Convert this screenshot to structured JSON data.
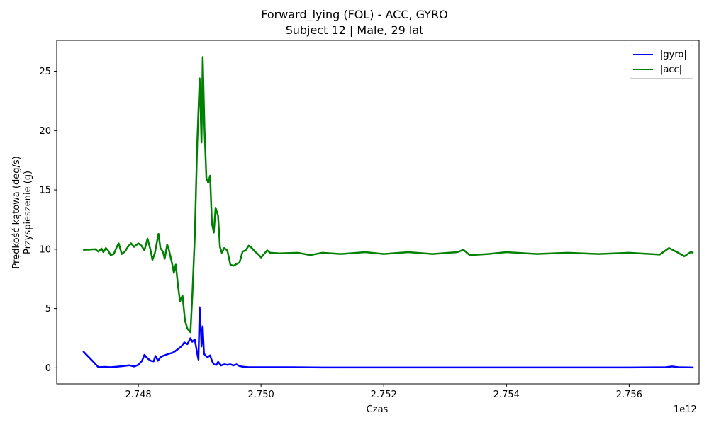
{
  "title_line1": "Forward_lying (FOL) - ACC, GYRO",
  "title_line2": "Subject 12 | Male, 29 lat",
  "chart_data": {
    "type": "line",
    "title": "Forward_lying (FOL) - ACC, GYRO\nSubject 12 | Male, 29 lat",
    "xlabel": "Czas",
    "ylabel_line1": "Prędkość kątowa (deg/s)",
    "ylabel_line2": "Przyspieszenie (g)",
    "x_offset_label": "1e12",
    "x_ticks": [
      2.748,
      2.75,
      2.752,
      2.754,
      2.756
    ],
    "x_tick_labels": [
      "2.748",
      "2.750",
      "2.752",
      "2.754",
      "2.756"
    ],
    "y_ticks": [
      0,
      5,
      10,
      15,
      20,
      25
    ],
    "y_tick_labels": [
      "0",
      "5",
      "10",
      "15",
      "20",
      "25"
    ],
    "xlim": [
      2.74667,
      2.75714
    ],
    "ylim": [
      -1.35,
      27.6
    ],
    "grid": false,
    "legend_position": "top-right",
    "series": [
      {
        "name": "|gyro|",
        "color": "#0000ff",
        "points": [
          [
            2.7471,
            1.4
          ],
          [
            2.74725,
            0.6
          ],
          [
            2.74735,
            0.05
          ],
          [
            2.74745,
            0.08
          ],
          [
            2.74755,
            0.05
          ],
          [
            2.74765,
            0.1
          ],
          [
            2.74775,
            0.15
          ],
          [
            2.74785,
            0.22
          ],
          [
            2.74793,
            0.12
          ],
          [
            2.748,
            0.25
          ],
          [
            2.74806,
            0.6
          ],
          [
            2.7481,
            1.1
          ],
          [
            2.74815,
            0.8
          ],
          [
            2.7482,
            0.6
          ],
          [
            2.74825,
            0.55
          ],
          [
            2.74828,
            1.0
          ],
          [
            2.74832,
            0.6
          ],
          [
            2.74836,
            0.9
          ],
          [
            2.7484,
            1.0
          ],
          [
            2.74845,
            1.1
          ],
          [
            2.7485,
            1.2
          ],
          [
            2.74855,
            1.25
          ],
          [
            2.7486,
            1.4
          ],
          [
            2.74865,
            1.6
          ],
          [
            2.7487,
            1.8
          ],
          [
            2.74875,
            2.15
          ],
          [
            2.7488,
            2.0
          ],
          [
            2.74885,
            2.5
          ],
          [
            2.74888,
            2.2
          ],
          [
            2.74892,
            2.4
          ],
          [
            2.74896,
            1.2
          ],
          [
            2.74898,
            0.7
          ],
          [
            2.749,
            5.1
          ],
          [
            2.74902,
            3.0
          ],
          [
            2.74903,
            1.8
          ],
          [
            2.74905,
            3.5
          ],
          [
            2.74907,
            1.2
          ],
          [
            2.7491,
            1.0
          ],
          [
            2.74913,
            0.9
          ],
          [
            2.74917,
            1.05
          ],
          [
            2.7492,
            0.6
          ],
          [
            2.74923,
            0.3
          ],
          [
            2.74927,
            0.25
          ],
          [
            2.7493,
            0.5
          ],
          [
            2.74935,
            0.2
          ],
          [
            2.7494,
            0.3
          ],
          [
            2.74945,
            0.25
          ],
          [
            2.7495,
            0.3
          ],
          [
            2.74955,
            0.2
          ],
          [
            2.7496,
            0.3
          ],
          [
            2.74965,
            0.15
          ],
          [
            2.7497,
            0.1
          ],
          [
            2.7498,
            0.05
          ],
          [
            2.75,
            0.05
          ],
          [
            2.7505,
            0.05
          ],
          [
            2.751,
            0.03
          ],
          [
            2.752,
            0.03
          ],
          [
            2.753,
            0.03
          ],
          [
            2.754,
            0.03
          ],
          [
            2.755,
            0.03
          ],
          [
            2.756,
            0.03
          ],
          [
            2.7566,
            0.05
          ],
          [
            2.7567,
            0.12
          ],
          [
            2.7568,
            0.05
          ],
          [
            2.75705,
            0.03
          ]
        ]
      },
      {
        "name": "|acc|",
        "color": "#008000",
        "points": [
          [
            2.7471,
            9.95
          ],
          [
            2.7473,
            10.0
          ],
          [
            2.74735,
            9.8
          ],
          [
            2.7474,
            10.05
          ],
          [
            2.74743,
            9.75
          ],
          [
            2.74747,
            10.1
          ],
          [
            2.7475,
            9.95
          ],
          [
            2.74755,
            9.5
          ],
          [
            2.7476,
            9.6
          ],
          [
            2.74765,
            10.2
          ],
          [
            2.74768,
            10.5
          ],
          [
            2.74773,
            9.6
          ],
          [
            2.74778,
            9.8
          ],
          [
            2.74783,
            10.2
          ],
          [
            2.74788,
            10.5
          ],
          [
            2.74793,
            10.2
          ],
          [
            2.748,
            10.5
          ],
          [
            2.74805,
            10.3
          ],
          [
            2.7481,
            9.9
          ],
          [
            2.74815,
            10.9
          ],
          [
            2.7482,
            9.9
          ],
          [
            2.74823,
            9.1
          ],
          [
            2.74827,
            9.7
          ],
          [
            2.7483,
            10.5
          ],
          [
            2.74833,
            11.3
          ],
          [
            2.74836,
            10.1
          ],
          [
            2.7484,
            9.8
          ],
          [
            2.74843,
            9.2
          ],
          [
            2.74847,
            10.4
          ],
          [
            2.7485,
            9.9
          ],
          [
            2.74855,
            8.8
          ],
          [
            2.74858,
            8.0
          ],
          [
            2.74861,
            8.7
          ],
          [
            2.74865,
            6.8
          ],
          [
            2.74868,
            5.6
          ],
          [
            2.74872,
            6.1
          ],
          [
            2.74876,
            4.0
          ],
          [
            2.7488,
            3.3
          ],
          [
            2.74885,
            3.0
          ],
          [
            2.74888,
            6.0
          ],
          [
            2.74892,
            11.0
          ],
          [
            2.74896,
            19.0
          ],
          [
            2.749,
            24.4
          ],
          [
            2.74903,
            19.0
          ],
          [
            2.74905,
            26.2
          ],
          [
            2.74908,
            20.0
          ],
          [
            2.74911,
            16.0
          ],
          [
            2.74914,
            15.6
          ],
          [
            2.74917,
            16.2
          ],
          [
            2.7492,
            12.2
          ],
          [
            2.74923,
            11.4
          ],
          [
            2.74926,
            13.5
          ],
          [
            2.7493,
            12.8
          ],
          [
            2.74933,
            10.2
          ],
          [
            2.74936,
            9.7
          ],
          [
            2.7494,
            10.1
          ],
          [
            2.74945,
            9.9
          ],
          [
            2.7495,
            8.7
          ],
          [
            2.74955,
            8.6
          ],
          [
            2.7496,
            8.75
          ],
          [
            2.74965,
            8.9
          ],
          [
            2.7497,
            9.8
          ],
          [
            2.74975,
            9.9
          ],
          [
            2.7498,
            10.3
          ],
          [
            2.74985,
            10.1
          ],
          [
            2.7499,
            9.8
          ],
          [
            2.74995,
            9.6
          ],
          [
            2.75,
            9.3
          ],
          [
            2.75005,
            9.6
          ],
          [
            2.7501,
            9.9
          ],
          [
            2.75015,
            9.7
          ],
          [
            2.7503,
            9.65
          ],
          [
            2.7506,
            9.7
          ],
          [
            2.7508,
            9.5
          ],
          [
            2.751,
            9.7
          ],
          [
            2.7513,
            9.6
          ],
          [
            2.7517,
            9.75
          ],
          [
            2.752,
            9.6
          ],
          [
            2.7524,
            9.75
          ],
          [
            2.7528,
            9.6
          ],
          [
            2.7532,
            9.75
          ],
          [
            2.7533,
            9.95
          ],
          [
            2.7534,
            9.5
          ],
          [
            2.7537,
            9.6
          ],
          [
            2.754,
            9.75
          ],
          [
            2.7545,
            9.6
          ],
          [
            2.755,
            9.7
          ],
          [
            2.7555,
            9.6
          ],
          [
            2.756,
            9.7
          ],
          [
            2.7565,
            9.55
          ],
          [
            2.75665,
            10.1
          ],
          [
            2.7568,
            9.7
          ],
          [
            2.7569,
            9.4
          ],
          [
            2.757,
            9.75
          ],
          [
            2.75705,
            9.7
          ]
        ]
      }
    ]
  }
}
